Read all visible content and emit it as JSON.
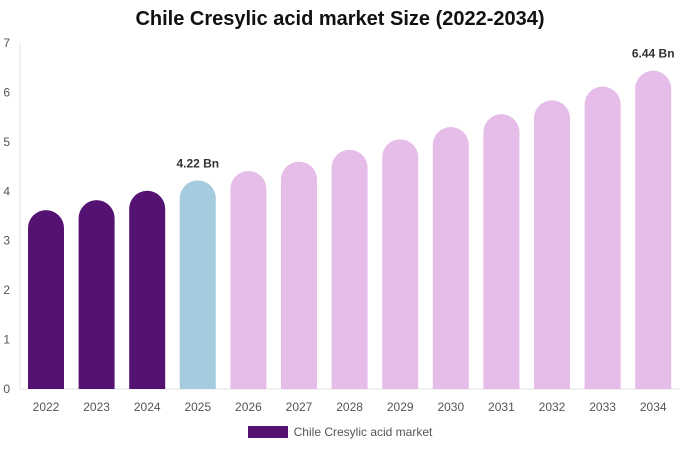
{
  "chart_data": {
    "type": "bar",
    "title": "Chile Cresylic acid market Size (2022-2034)",
    "categories": [
      "2022",
      "2023",
      "2024",
      "2025",
      "2026",
      "2027",
      "2028",
      "2029",
      "2030",
      "2031",
      "2032",
      "2033",
      "2034"
    ],
    "series": [
      {
        "name": "Chile Cresylic acid market",
        "values": [
          3.62,
          3.82,
          4.01,
          4.22,
          4.41,
          4.6,
          4.84,
          5.05,
          5.3,
          5.56,
          5.84,
          6.12,
          6.44
        ]
      }
    ],
    "data_labels": [
      {
        "category": "2025",
        "text": "4.22 Bn"
      },
      {
        "category": "2034",
        "text": "6.44 Bn"
      }
    ],
    "ylim": [
      0,
      7
    ],
    "yticks": [
      "0",
      "1",
      "2",
      "3",
      "4",
      "5",
      "6",
      "7"
    ],
    "xlabel": "",
    "ylabel": "",
    "grid": false,
    "legend_position": "bottom",
    "colors": {
      "historical": "#541372",
      "current": "#a5cbde",
      "forecast": "#e6bde9",
      "legend": "#541372"
    }
  }
}
